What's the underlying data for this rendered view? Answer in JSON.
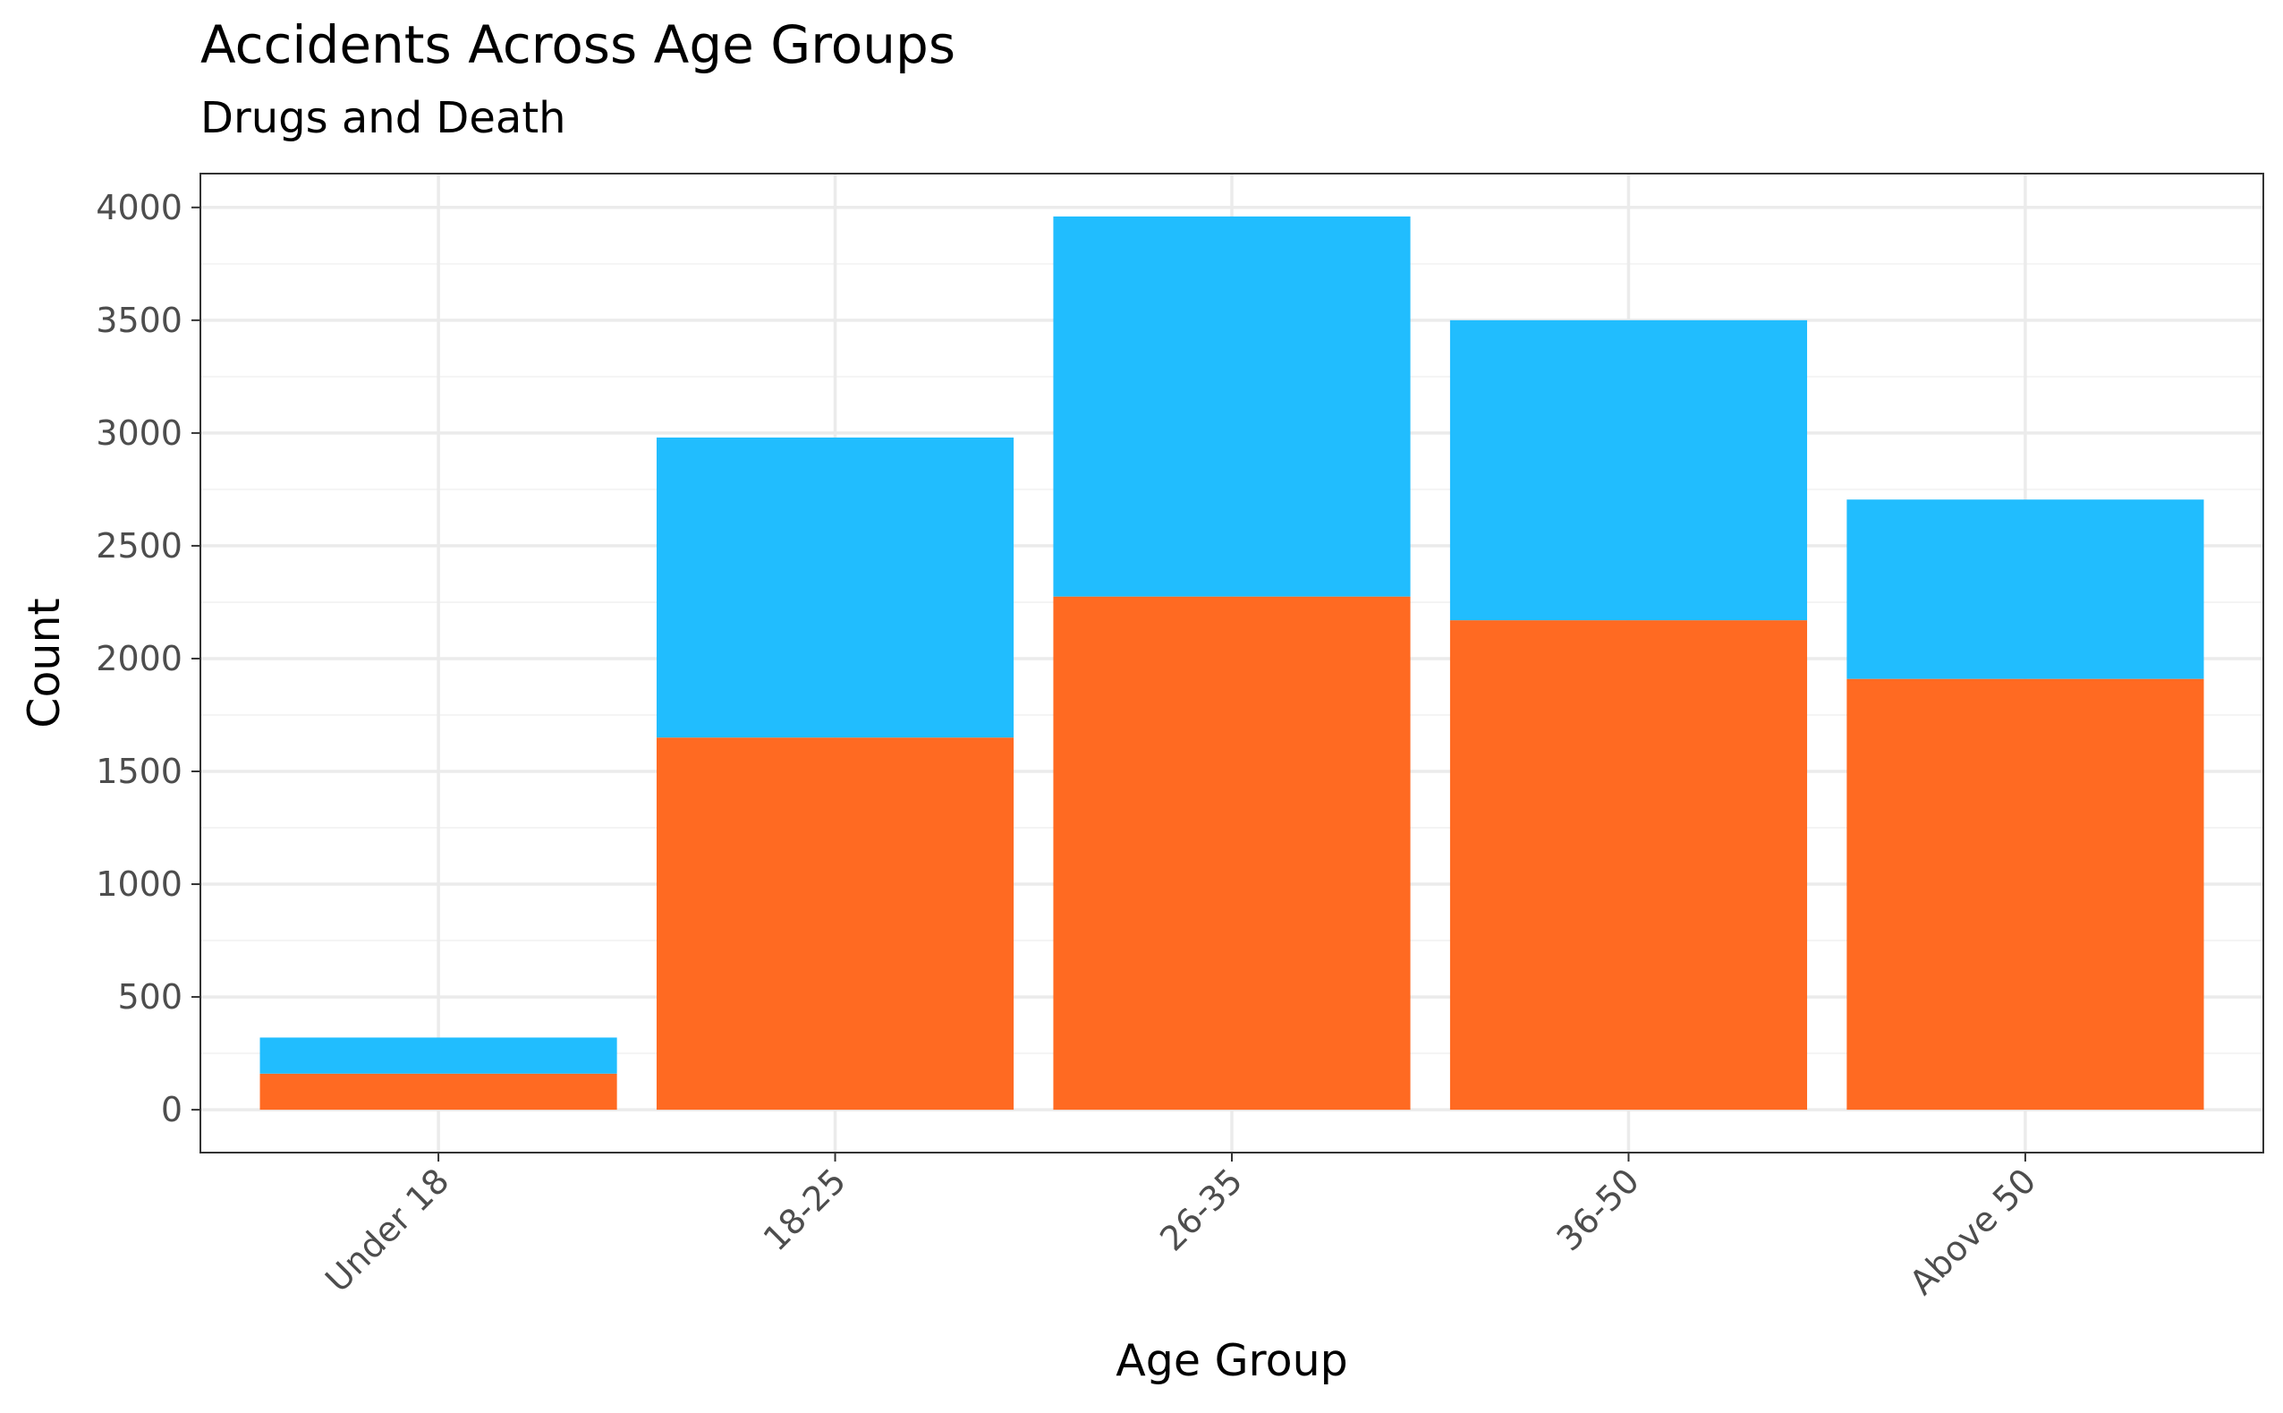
{
  "colors": {
    "background": "#ffffff",
    "panel_border": "#333333",
    "grid_major": "#ebebeb",
    "grid_minor": "#f4f4f4",
    "tick": "#333333"
  },
  "chart_data": {
    "type": "bar",
    "stacked": true,
    "title": "Accidents Across Age Groups",
    "subtitle": "Drugs and Death",
    "xlabel": "Age Group",
    "ylabel": "Count",
    "categories": [
      "Under 18",
      "18-25",
      "26-35",
      "36-50",
      "Above 50"
    ],
    "series": [
      {
        "color": "#ff6a22",
        "values": [
          160,
          1650,
          2275,
          2170,
          1910
        ]
      },
      {
        "color": "#21bdfe",
        "values": [
          160,
          1330,
          1685,
          1330,
          795
        ]
      }
    ],
    "ylim": [
      -190,
      4150
    ],
    "yticks": [
      0,
      500,
      1000,
      1500,
      2000,
      2500,
      3000,
      3500,
      4000
    ],
    "ytick_labels": [
      "0",
      "500",
      "1000",
      "1500",
      "2000",
      "2500",
      "3000",
      "3500",
      "4000"
    ],
    "grid": true,
    "legend": "none"
  }
}
